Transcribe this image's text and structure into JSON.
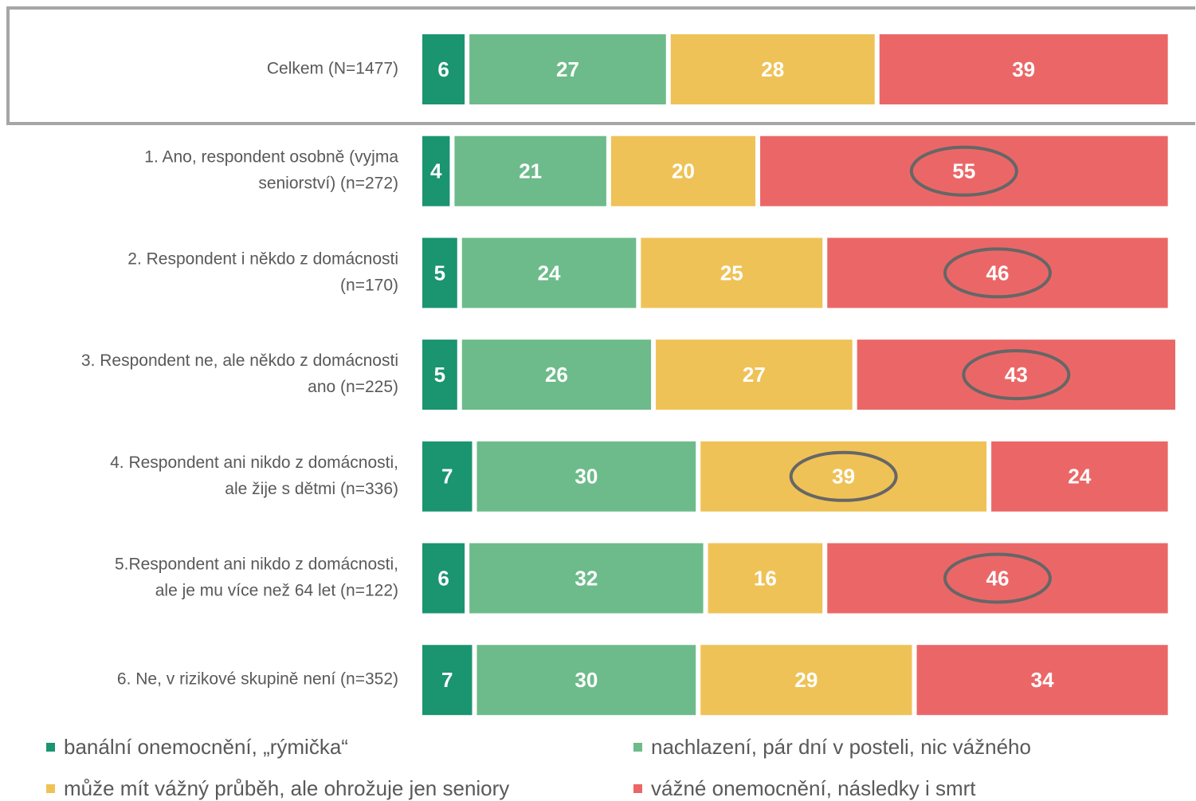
{
  "chart_data": {
    "type": "bar",
    "orientation": "horizontal",
    "stacked": true,
    "categories": [
      [
        "Celkem (N=1477)"
      ],
      [
        "1. Ano, respondent osobně (vyjma",
        "seniorství) (n=272)"
      ],
      [
        "2. Respondent i někdo z domácnosti",
        "(n=170)"
      ],
      [
        "3. Respondent ne, ale někdo z domácnosti",
        "ano (n=225)"
      ],
      [
        "4. Respondent ani nikdo z domácnosti,",
        "ale žije s dětmi (n=336)"
      ],
      [
        "5.Respondent ani nikdo z domácnosti,",
        "ale je mu více než 64 let (n=122)"
      ],
      [
        "6. Ne, v rizikové skupině není (n=352)"
      ]
    ],
    "series": [
      {
        "name": "banální onemocnění, „rýmička“",
        "color": "#1b9470",
        "values": [
          6,
          4,
          5,
          5,
          7,
          6,
          7
        ]
      },
      {
        "name": "nachlazení, pár dní v posteli, nic vážného",
        "color": "#6dbb8a",
        "values": [
          27,
          21,
          24,
          26,
          30,
          32,
          30
        ]
      },
      {
        "name": "může mít vážný průběh, ale ohrožuje jen seniory",
        "color": "#efc257",
        "values": [
          28,
          20,
          25,
          27,
          39,
          16,
          29
        ]
      },
      {
        "name": "vážné onemocnění, následky i smrt",
        "color": "#eb6767",
        "values": [
          39,
          55,
          46,
          43,
          24,
          46,
          34
        ]
      }
    ],
    "xlim": [
      0,
      101
    ],
    "legend": "bottom"
  }
}
